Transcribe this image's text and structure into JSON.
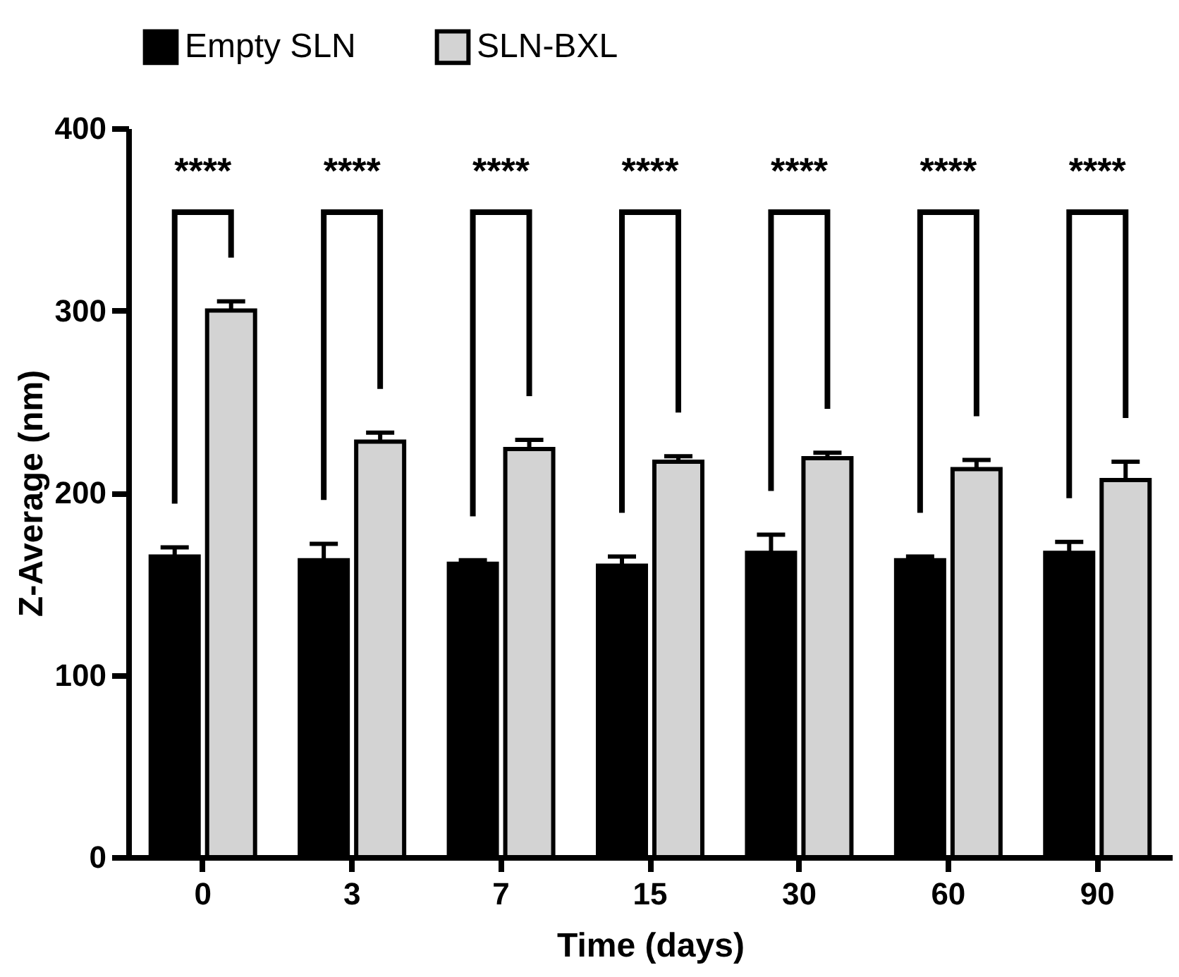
{
  "chart_data": {
    "type": "bar",
    "xlabel": "Time (days)",
    "ylabel": "Z-Average (nm)",
    "categories": [
      "0",
      "3",
      "7",
      "15",
      "30",
      "60",
      "90"
    ],
    "series": [
      {
        "name": "Empty SLN",
        "color": "#000000",
        "values": [
          165,
          163,
          161,
          160,
          167,
          163,
          167
        ],
        "errors": [
          [
            165,
            170
          ],
          [
            163,
            172
          ],
          [
            161,
            163
          ],
          [
            160,
            165
          ],
          [
            167,
            177
          ],
          [
            163,
            165
          ],
          [
            167,
            173
          ]
        ]
      },
      {
        "name": "SLN-BXL",
        "color": "#d3d3d3",
        "values": [
          300,
          228,
          224,
          217,
          219,
          213,
          207
        ],
        "errors": [
          [
            300,
            305
          ],
          [
            228,
            233
          ],
          [
            224,
            229
          ],
          [
            217,
            220
          ],
          [
            219,
            222
          ],
          [
            213,
            218
          ],
          [
            207,
            217
          ]
        ]
      }
    ],
    "ylim": [
      0,
      400
    ],
    "yticks": [
      0,
      100,
      200,
      300,
      400
    ],
    "grid": false,
    "legend": "top",
    "annotations": [
      "****",
      "****",
      "****",
      "****",
      "****",
      "****",
      "****"
    ]
  }
}
